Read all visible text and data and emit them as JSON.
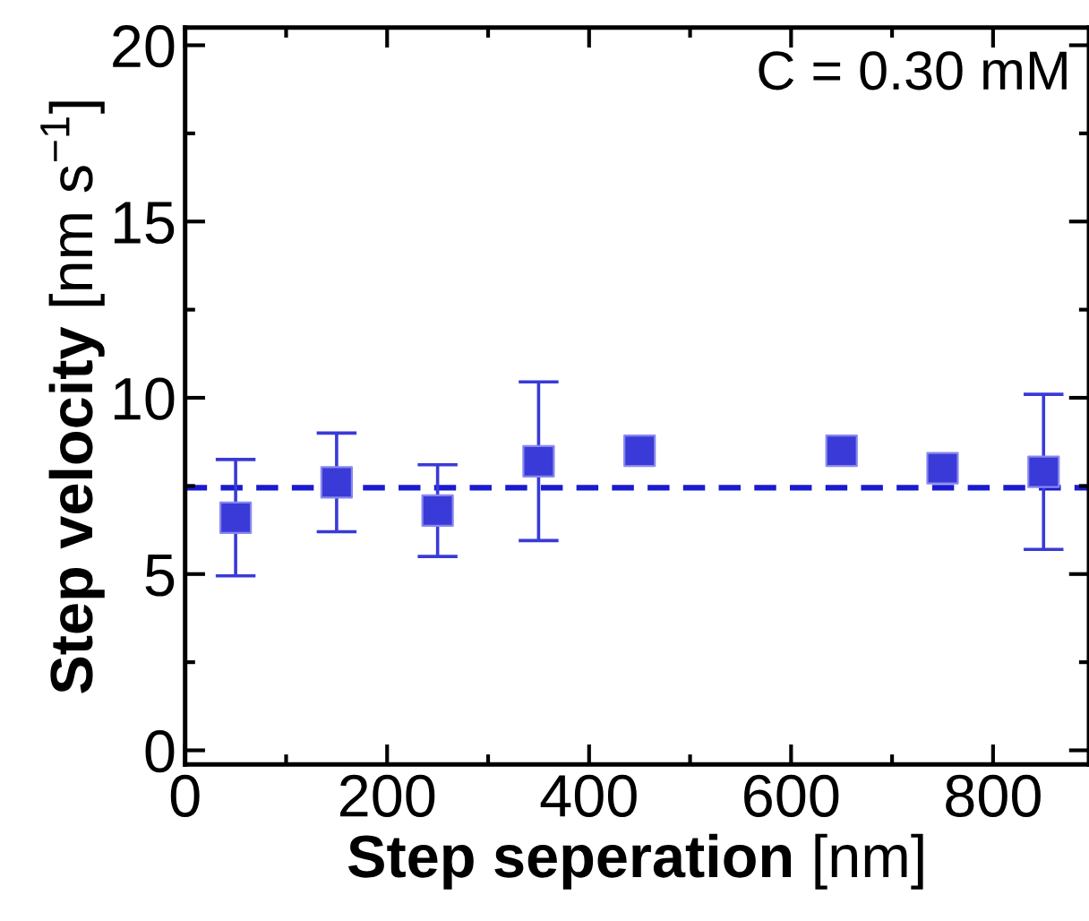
{
  "chart_data": {
    "type": "scatter",
    "xlabel": "Step seperation [nm]",
    "ylabel": "Step velocity [nm s$^{−1}$]",
    "x": [
      50,
      150,
      250,
      350,
      450,
      650,
      750,
      850
    ],
    "series": [
      {
        "color": "#3a3ad8",
        "values": [
          6.6,
          7.6,
          6.8,
          8.2,
          8.5,
          8.5,
          8.0,
          7.9
        ],
        "errors": [
          1.65,
          1.4,
          1.3,
          2.25,
          null,
          null,
          null,
          2.2
        ]
      }
    ],
    "marker": "square",
    "xlim": [
      0,
      895
    ],
    "ylim": [
      -0.4,
      20.5
    ],
    "xticks": [
      0,
      200,
      400,
      600,
      800
    ],
    "yticks": [
      0,
      5,
      10,
      15,
      20
    ],
    "ref_lines": [
      {
        "axis": "y",
        "value": 7.45,
        "color": "#1a1ad0",
        "line_style": "dashed"
      }
    ],
    "annotations": [
      "C = 0.30 mM"
    ]
  }
}
